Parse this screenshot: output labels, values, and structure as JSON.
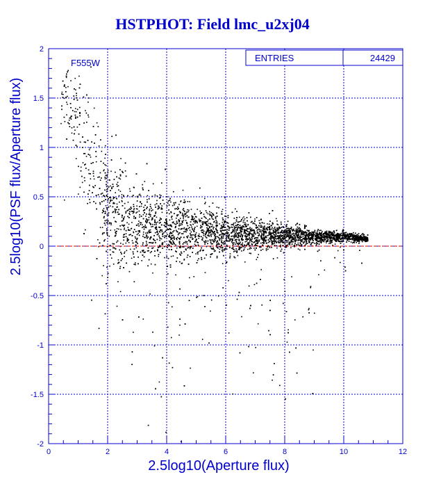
{
  "title": "HSTPHOT: Field lmc_u2xj04",
  "chart_data": {
    "type": "scatter",
    "title": "HSTPHOT: Field lmc_u2xj04",
    "xlabel": "2.5log10(Aperture flux)",
    "ylabel": "2.5log10(PSF flux/Aperture flux)",
    "xlim": [
      0,
      12
    ],
    "ylim": [
      -2,
      2
    ],
    "x_ticks": [
      "0",
      "2",
      "4",
      "6",
      "8",
      "10",
      "12"
    ],
    "y_ticks": [
      "2",
      "1.5",
      "1",
      "0.5",
      "0",
      "-0.5",
      "-1",
      "-1.5",
      "-2"
    ],
    "grid": true,
    "reference_line": {
      "y": 0,
      "color": "#cc0000",
      "style": "dashed"
    },
    "filter_label": "F555W",
    "stats_box": {
      "label": "ENTRIES",
      "value": "24429"
    },
    "density_profile": [
      {
        "x": 0.5,
        "y_center": 1.6,
        "spread": 0.35
      },
      {
        "x": 1.0,
        "y_center": 1.2,
        "spread": 0.45
      },
      {
        "x": 1.5,
        "y_center": 0.8,
        "spread": 0.55
      },
      {
        "x": 2.0,
        "y_center": 0.35,
        "spread": 0.5
      },
      {
        "x": 3.0,
        "y_center": 0.2,
        "spread": 0.35
      },
      {
        "x": 4.0,
        "y_center": 0.17,
        "spread": 0.28
      },
      {
        "x": 5.0,
        "y_center": 0.15,
        "spread": 0.23
      },
      {
        "x": 6.0,
        "y_center": 0.13,
        "spread": 0.18
      },
      {
        "x": 7.0,
        "y_center": 0.12,
        "spread": 0.14
      },
      {
        "x": 8.0,
        "y_center": 0.11,
        "spread": 0.1
      },
      {
        "x": 9.0,
        "y_center": 0.1,
        "spread": 0.06
      },
      {
        "x": 10.0,
        "y_center": 0.1,
        "spread": 0.04
      },
      {
        "x": 10.7,
        "y_center": 0.08,
        "spread": 0.03
      }
    ],
    "colors": {
      "points": "#000000",
      "axes": "#0000cc",
      "grid": "#0000cc",
      "reference_line": "#cc0000"
    }
  }
}
